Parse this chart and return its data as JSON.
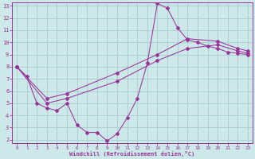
{
  "xlabel": "Windchill (Refroidissement éolien,°C)",
  "background_color": "#cce8e8",
  "grid_color": "#aacccc",
  "line_color": "#993399",
  "xlim_min": -0.5,
  "xlim_max": 23.5,
  "ylim_min": 1.7,
  "ylim_max": 13.3,
  "xticks": [
    0,
    1,
    2,
    3,
    4,
    5,
    6,
    7,
    8,
    9,
    10,
    11,
    12,
    13,
    14,
    15,
    16,
    17,
    18,
    19,
    20,
    21,
    22,
    23
  ],
  "yticks": [
    2,
    3,
    4,
    5,
    6,
    7,
    8,
    9,
    10,
    11,
    12,
    13
  ],
  "curve1_x": [
    0,
    1,
    2,
    3,
    4,
    5,
    6,
    7,
    8,
    9,
    10,
    11,
    12,
    13,
    14,
    15,
    16,
    17,
    18,
    19,
    20,
    21,
    22,
    23
  ],
  "curve1_y": [
    8.0,
    7.2,
    5.0,
    4.6,
    4.4,
    5.0,
    3.2,
    2.6,
    2.6,
    1.9,
    2.5,
    3.8,
    5.4,
    8.3,
    13.2,
    12.8,
    11.2,
    10.2,
    10.0,
    9.7,
    9.5,
    9.2,
    9.1,
    9.0
  ],
  "curve2_x": [
    0,
    3,
    5,
    10,
    14,
    17,
    20,
    22,
    23
  ],
  "curve2_y": [
    8.0,
    5.4,
    5.8,
    7.5,
    9.0,
    10.3,
    10.1,
    9.5,
    9.3
  ],
  "curve3_x": [
    0,
    3,
    5,
    10,
    14,
    17,
    20,
    22,
    23
  ],
  "curve3_y": [
    8.0,
    5.0,
    5.4,
    6.8,
    8.5,
    9.5,
    9.8,
    9.3,
    9.1
  ]
}
